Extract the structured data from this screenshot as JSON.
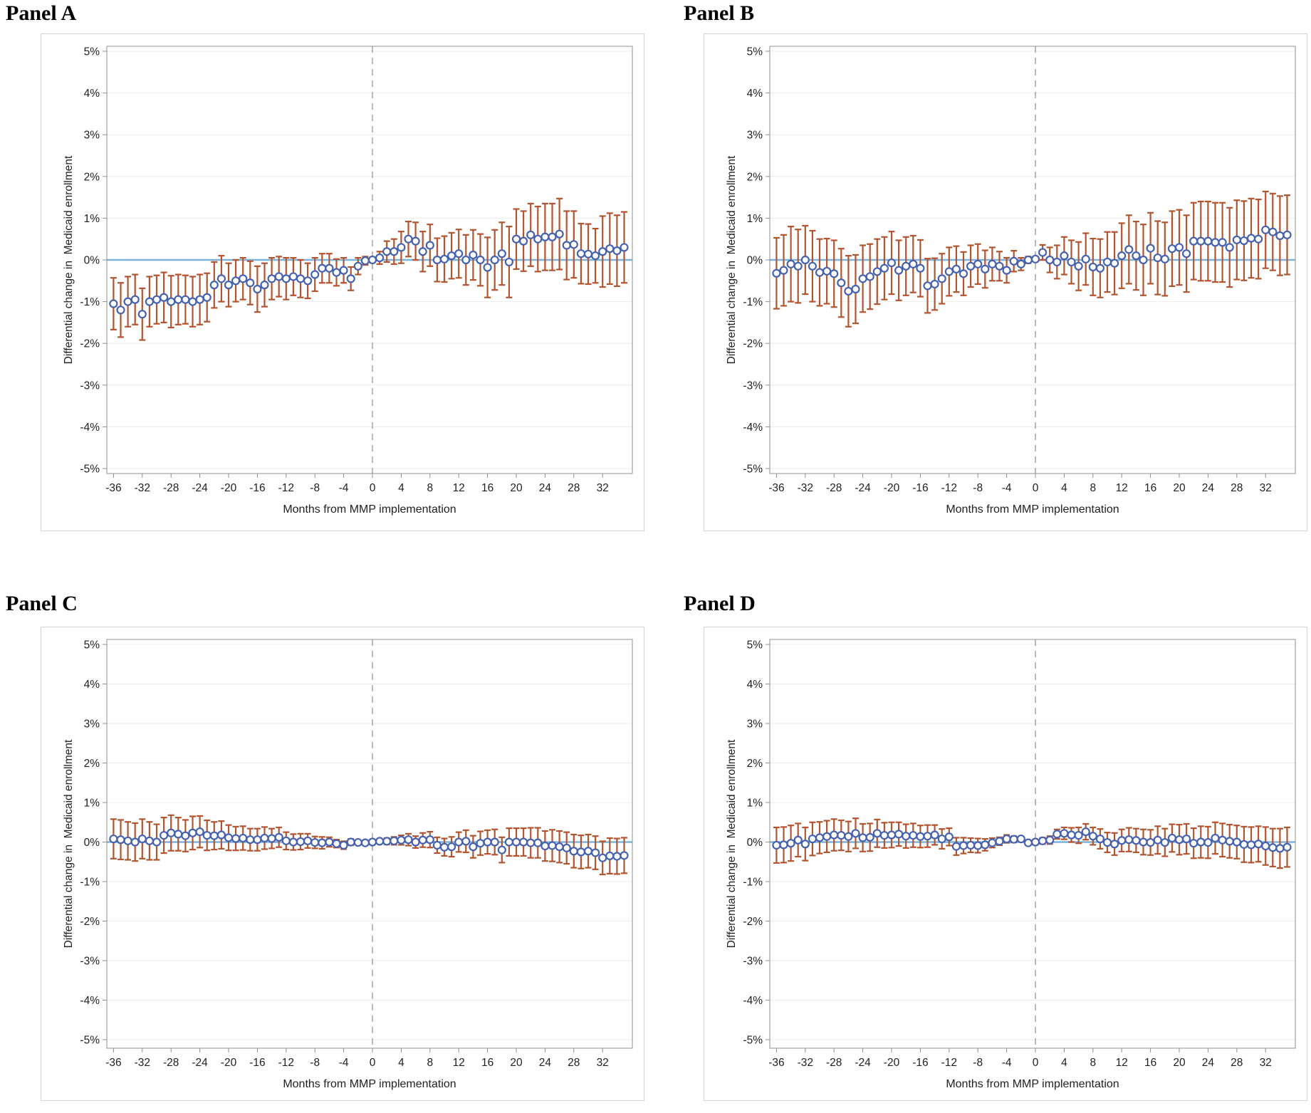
{
  "panels": [
    {
      "label": "Panel A"
    },
    {
      "label": "Panel B"
    },
    {
      "label": "Panel C"
    },
    {
      "label": "Panel D"
    }
  ],
  "colors": {
    "error_bar": "#b2542f",
    "point_marker": "#4661b0",
    "zero_line": "#7eb3d9",
    "event_line": "#a8a8a8",
    "gridline": "#ebebeb",
    "axis_border": "#8f8f8f",
    "outer_border": "#d3d3d3",
    "tick_text": "#212121"
  },
  "chart_data": {
    "type": "scatter",
    "subtype": "event-study with 95% CI error bars",
    "xlabel": "Months from MMP implementation",
    "ylabel": "Differential change in  Medicaid enrollment",
    "ylim": [
      -5,
      5
    ],
    "grid": true,
    "legend": false,
    "y_tick_values": [
      5,
      4,
      3,
      2,
      1,
      0,
      -1,
      -2,
      -3,
      -4,
      -5
    ],
    "y_tick_labels": [
      "5%",
      "4%",
      "3%",
      "2%",
      "1%",
      "0%",
      "-1%",
      "-2%",
      "-3%",
      "-4%",
      "-5%"
    ],
    "x_tick_values": [
      -36,
      -32,
      -28,
      -24,
      -20,
      -16,
      -12,
      -8,
      -4,
      0,
      4,
      8,
      12,
      16,
      20,
      24,
      28,
      32
    ],
    "reference_line_y": 0,
    "event_line_x": 0,
    "x": [
      -36,
      -35,
      -34,
      -33,
      -32,
      -31,
      -30,
      -29,
      -28,
      -27,
      -26,
      -25,
      -24,
      -23,
      -22,
      -21,
      -20,
      -19,
      -18,
      -17,
      -16,
      -15,
      -14,
      -13,
      -12,
      -11,
      -10,
      -9,
      -8,
      -7,
      -6,
      -5,
      -4,
      -3,
      -2,
      -1,
      0,
      1,
      2,
      3,
      4,
      5,
      6,
      7,
      8,
      9,
      10,
      11,
      12,
      13,
      14,
      15,
      16,
      17,
      18,
      19,
      20,
      21,
      22,
      23,
      24,
      25,
      26,
      27,
      28,
      29,
      30,
      31,
      32,
      33,
      34,
      35
    ],
    "series": [
      {
        "name": "Panel A",
        "values": [
          -1.05,
          -1.2,
          -1.0,
          -0.95,
          -1.3,
          -1.0,
          -0.95,
          -0.9,
          -1.0,
          -0.95,
          -0.95,
          -1.0,
          -0.95,
          -0.9,
          -0.6,
          -0.45,
          -0.6,
          -0.5,
          -0.45,
          -0.55,
          -0.7,
          -0.6,
          -0.45,
          -0.4,
          -0.45,
          -0.4,
          -0.45,
          -0.5,
          -0.35,
          -0.2,
          -0.2,
          -0.3,
          -0.25,
          -0.45,
          -0.15,
          -0.02,
          0.0,
          0.05,
          0.2,
          0.2,
          0.3,
          0.5,
          0.45,
          0.2,
          0.35,
          0.0,
          0.02,
          0.1,
          0.15,
          0.0,
          0.12,
          0.0,
          -0.18,
          0.0,
          0.15,
          -0.05,
          0.5,
          0.45,
          0.6,
          0.5,
          0.55,
          0.55,
          0.62,
          0.35,
          0.37,
          0.15,
          0.14,
          0.1,
          0.2,
          0.27,
          0.22,
          0.3
        ],
        "ci_halfwidth": [
          0.62,
          0.65,
          0.6,
          0.6,
          0.62,
          0.6,
          0.58,
          0.6,
          0.62,
          0.6,
          0.58,
          0.6,
          0.6,
          0.58,
          0.55,
          0.55,
          0.52,
          0.5,
          0.5,
          0.52,
          0.55,
          0.52,
          0.5,
          0.48,
          0.5,
          0.45,
          0.45,
          0.42,
          0.4,
          0.35,
          0.35,
          0.32,
          0.3,
          0.28,
          0.2,
          0.1,
          0.06,
          0.15,
          0.25,
          0.3,
          0.38,
          0.42,
          0.45,
          0.48,
          0.5,
          0.52,
          0.55,
          0.55,
          0.58,
          0.6,
          0.6,
          0.62,
          0.72,
          0.72,
          0.75,
          0.85,
          0.72,
          0.72,
          0.75,
          0.78,
          0.8,
          0.8,
          0.85,
          0.82,
          0.8,
          0.72,
          0.72,
          0.65,
          0.85,
          0.85,
          0.85,
          0.85
        ]
      },
      {
        "name": "Panel B",
        "values": [
          -0.32,
          -0.25,
          -0.1,
          -0.15,
          0.0,
          -0.15,
          -0.3,
          -0.27,
          -0.33,
          -0.55,
          -0.75,
          -0.7,
          -0.45,
          -0.4,
          -0.28,
          -0.2,
          -0.07,
          -0.25,
          -0.15,
          -0.1,
          -0.2,
          -0.62,
          -0.58,
          -0.45,
          -0.28,
          -0.22,
          -0.33,
          -0.15,
          -0.1,
          -0.22,
          -0.1,
          -0.15,
          -0.25,
          -0.03,
          -0.1,
          0.0,
          0.02,
          0.18,
          0.0,
          -0.05,
          0.1,
          -0.05,
          -0.15,
          0.02,
          -0.17,
          -0.2,
          -0.05,
          -0.08,
          0.1,
          0.25,
          0.1,
          0.0,
          0.28,
          0.05,
          0.02,
          0.27,
          0.3,
          0.15,
          0.45,
          0.45,
          0.45,
          0.42,
          0.42,
          0.3,
          0.48,
          0.46,
          0.52,
          0.5,
          0.72,
          0.67,
          0.58,
          0.6
        ],
        "ci_halfwidth": [
          0.85,
          0.85,
          0.9,
          0.88,
          0.82,
          0.85,
          0.8,
          0.78,
          0.8,
          0.82,
          0.85,
          0.82,
          0.8,
          0.78,
          0.78,
          0.75,
          0.75,
          0.72,
          0.7,
          0.68,
          0.68,
          0.65,
          0.62,
          0.6,
          0.58,
          0.55,
          0.52,
          0.5,
          0.48,
          0.45,
          0.4,
          0.35,
          0.3,
          0.25,
          0.15,
          0.08,
          0.06,
          0.18,
          0.3,
          0.4,
          0.45,
          0.52,
          0.58,
          0.62,
          0.68,
          0.7,
          0.72,
          0.75,
          0.78,
          0.82,
          0.82,
          0.85,
          0.85,
          0.88,
          0.88,
          0.9,
          0.9,
          0.92,
          0.92,
          0.95,
          0.95,
          0.95,
          0.95,
          0.95,
          0.95,
          0.95,
          0.95,
          0.95,
          0.92,
          0.92,
          0.95,
          0.95
        ]
      },
      {
        "name": "Panel C",
        "values": [
          0.08,
          0.06,
          0.03,
          0.0,
          0.08,
          0.03,
          0.0,
          0.17,
          0.23,
          0.2,
          0.16,
          0.23,
          0.26,
          0.17,
          0.16,
          0.18,
          0.11,
          0.09,
          0.1,
          0.06,
          0.06,
          0.1,
          0.09,
          0.12,
          0.03,
          0.0,
          0.01,
          0.03,
          -0.01,
          -0.02,
          0.0,
          -0.04,
          -0.08,
          0.0,
          -0.01,
          -0.02,
          0.0,
          0.02,
          0.02,
          0.03,
          0.05,
          0.06,
          0.0,
          0.05,
          0.06,
          -0.08,
          -0.13,
          -0.12,
          0.0,
          0.02,
          -0.12,
          -0.03,
          0.0,
          0.0,
          -0.2,
          0.0,
          0.0,
          0.0,
          -0.02,
          -0.02,
          -0.1,
          -0.09,
          -0.12,
          -0.15,
          -0.23,
          -0.25,
          -0.23,
          -0.27,
          -0.4,
          -0.35,
          -0.36,
          -0.34
        ],
        "ci_halfwidth": [
          0.5,
          0.5,
          0.48,
          0.48,
          0.5,
          0.48,
          0.45,
          0.45,
          0.45,
          0.42,
          0.4,
          0.42,
          0.4,
          0.38,
          0.35,
          0.35,
          0.32,
          0.3,
          0.3,
          0.28,
          0.28,
          0.28,
          0.25,
          0.25,
          0.22,
          0.2,
          0.2,
          0.18,
          0.15,
          0.15,
          0.12,
          0.1,
          0.1,
          0.08,
          0.05,
          0.03,
          0.03,
          0.05,
          0.08,
          0.1,
          0.12,
          0.15,
          0.15,
          0.18,
          0.2,
          0.2,
          0.22,
          0.25,
          0.25,
          0.28,
          0.28,
          0.3,
          0.3,
          0.32,
          0.32,
          0.35,
          0.35,
          0.35,
          0.38,
          0.38,
          0.38,
          0.4,
          0.4,
          0.4,
          0.42,
          0.42,
          0.42,
          0.42,
          0.42,
          0.45,
          0.45,
          0.45
        ]
      },
      {
        "name": "Panel D",
        "values": [
          -0.08,
          -0.07,
          -0.03,
          0.05,
          -0.05,
          0.08,
          0.11,
          0.14,
          0.18,
          0.17,
          0.14,
          0.22,
          0.11,
          0.12,
          0.22,
          0.17,
          0.18,
          0.2,
          0.15,
          0.17,
          0.14,
          0.15,
          0.18,
          0.08,
          0.13,
          -0.11,
          -0.09,
          -0.08,
          -0.09,
          -0.07,
          -0.02,
          0.02,
          0.08,
          0.07,
          0.08,
          -0.02,
          0.0,
          0.03,
          0.05,
          0.2,
          0.22,
          0.18,
          0.17,
          0.26,
          0.15,
          0.08,
          -0.01,
          -0.05,
          0.04,
          0.06,
          0.04,
          0.0,
          -0.01,
          0.05,
          -0.01,
          0.1,
          0.06,
          0.08,
          -0.03,
          0.0,
          -0.01,
          0.1,
          0.05,
          0.02,
          0.0,
          -0.06,
          -0.07,
          -0.05,
          -0.1,
          -0.14,
          -0.16,
          -0.13
        ],
        "ci_halfwidth": [
          0.45,
          0.45,
          0.45,
          0.42,
          0.42,
          0.42,
          0.4,
          0.4,
          0.4,
          0.38,
          0.38,
          0.38,
          0.35,
          0.35,
          0.35,
          0.32,
          0.32,
          0.3,
          0.3,
          0.3,
          0.28,
          0.28,
          0.25,
          0.25,
          0.22,
          0.22,
          0.2,
          0.18,
          0.18,
          0.15,
          0.12,
          0.1,
          0.1,
          0.08,
          0.05,
          0.03,
          0.03,
          0.08,
          0.1,
          0.12,
          0.15,
          0.18,
          0.2,
          0.2,
          0.22,
          0.25,
          0.25,
          0.28,
          0.28,
          0.3,
          0.3,
          0.32,
          0.32,
          0.35,
          0.35,
          0.35,
          0.38,
          0.38,
          0.38,
          0.4,
          0.4,
          0.4,
          0.42,
          0.42,
          0.42,
          0.45,
          0.45,
          0.45,
          0.48,
          0.48,
          0.5,
          0.5
        ]
      }
    ]
  }
}
